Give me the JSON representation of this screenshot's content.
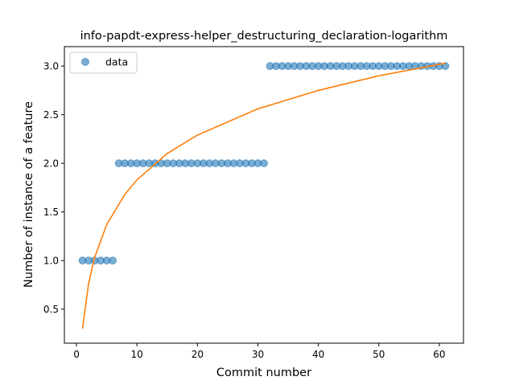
{
  "chart_data": {
    "type": "scatter",
    "title": "info-papdt-express-helper_destructuring_declaration-logarithm",
    "xlabel": "Commit number",
    "ylabel": "Number of instance of a feature",
    "xlim": [
      -2,
      64
    ],
    "ylim": [
      0.15,
      3.2
    ],
    "xticks": [
      0,
      10,
      20,
      30,
      40,
      50,
      60
    ],
    "yticks": [
      0.5,
      1.0,
      1.5,
      2.0,
      2.5,
      3.0
    ],
    "xtick_labels": [
      "0",
      "10",
      "20",
      "30",
      "40",
      "50",
      "60"
    ],
    "ytick_labels": [
      "0.5",
      "1.0",
      "1.5",
      "2.0",
      "2.5",
      "3.0"
    ],
    "grid": false,
    "legend": {
      "position": "top-left",
      "entries": [
        "data"
      ]
    },
    "series": [
      {
        "name": "data",
        "kind": "points",
        "color": "#1f77b4",
        "x": [
          1,
          2,
          3,
          4,
          5,
          6,
          7,
          8,
          9,
          10,
          11,
          12,
          13,
          14,
          15,
          16,
          17,
          18,
          19,
          20,
          21,
          22,
          23,
          24,
          25,
          26,
          27,
          28,
          29,
          30,
          31,
          32,
          33,
          34,
          35,
          36,
          37,
          38,
          39,
          40,
          41,
          42,
          43,
          44,
          45,
          46,
          47,
          48,
          49,
          50,
          51,
          52,
          53,
          54,
          55,
          56,
          57,
          58,
          59,
          60,
          61
        ],
        "y": [
          1,
          1,
          1,
          1,
          1,
          1,
          2,
          2,
          2,
          2,
          2,
          2,
          2,
          2,
          2,
          2,
          2,
          2,
          2,
          2,
          2,
          2,
          2,
          2,
          2,
          2,
          2,
          2,
          2,
          2,
          2,
          3,
          3,
          3,
          3,
          3,
          3,
          3,
          3,
          3,
          3,
          3,
          3,
          3,
          3,
          3,
          3,
          3,
          3,
          3,
          3,
          3,
          3,
          3,
          3,
          3,
          3,
          3,
          3,
          3,
          3
        ]
      },
      {
        "kind": "fit-line",
        "color": "#ff7f0e",
        "x": [
          1,
          2,
          3,
          5,
          8,
          10,
          15,
          20,
          30,
          40,
          50,
          61
        ],
        "y": [
          0.3,
          0.76,
          1.03,
          1.37,
          1.68,
          1.83,
          2.1,
          2.29,
          2.56,
          2.75,
          2.9,
          3.03
        ]
      }
    ]
  }
}
